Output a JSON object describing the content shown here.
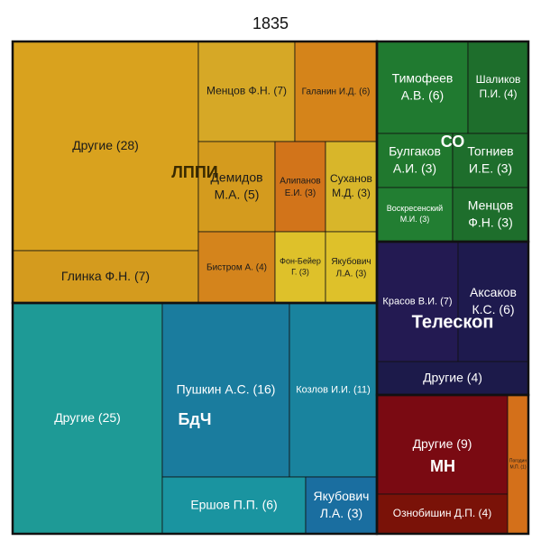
{
  "chart_data": {
    "type": "treemap",
    "title": "1835",
    "groups": [
      {
        "name": "ЛППИ",
        "label_color": "#3a2a00",
        "children": [
          {
            "name": "Другие",
            "value": 28,
            "label": "Другие (28)",
            "color": "#D9A21E"
          },
          {
            "name": "Глинка Ф.Н.",
            "value": 7,
            "label": "Глинка Ф.Н. (7)",
            "color": "#D49B1E"
          },
          {
            "name": "Менцов Ф.Н.",
            "value": 7,
            "label": "Менцов Ф.Н. (7)",
            "color": "#D6A826"
          },
          {
            "name": "Галанин И.Д.",
            "value": 6,
            "label": "Галанин И.Д. (6)",
            "color": "#D5841A"
          },
          {
            "name": "Демидов М.А.",
            "value": 5,
            "label": "Демидов М.А. (5)",
            "color": "#D49B1E"
          },
          {
            "name": "Бистром А.",
            "value": 4,
            "label": "Бистром А. (4)",
            "color": "#D4841C"
          },
          {
            "name": "Алипанов Е.И.",
            "value": 3,
            "label": "Алипанов Е.И. (3)",
            "color": "#D2741A"
          },
          {
            "name": "Суханов М.Д.",
            "value": 3,
            "label": "Суханов М.Д. (3)",
            "color": "#D8B62A"
          },
          {
            "name": "Фон-Бейер Г.",
            "value": 3,
            "label": "Фон-Бейер Г. (3)",
            "color": "#DEC12A"
          },
          {
            "name": "Якубович Л.А.",
            "value": 3,
            "label": "Якубович Л.А. (3)",
            "color": "#DEC12A"
          }
        ]
      },
      {
        "name": "СО",
        "label_color": "#ffffff",
        "children": [
          {
            "name": "Тимофеев А.В.",
            "value": 6,
            "label": "Тимофеев А.В. (6)",
            "color": "#207A30"
          },
          {
            "name": "Шаликов П.И.",
            "value": 4,
            "label": "Шаликов П.И. (4)",
            "color": "#1E6E2C"
          },
          {
            "name": "Булгаков А.И.",
            "value": 3,
            "label": "Булгаков А.И. (3)",
            "color": "#20782E"
          },
          {
            "name": "Тогниев И.Е.",
            "value": 3,
            "label": "Тогниев И.Е. (3)",
            "color": "#1E6E2C"
          },
          {
            "name": "Воскресенский М.И.",
            "value": 3,
            "label": "Воскресенский М.И. (3)",
            "color": "#227E32"
          },
          {
            "name": "Менцов Ф.Н.",
            "value": 3,
            "label": "Менцов Ф.Н. (3)",
            "color": "#1E6E2C"
          }
        ]
      },
      {
        "name": "Телескоп",
        "label_color": "#ffffff",
        "children": [
          {
            "name": "Красов В.И.",
            "value": 7,
            "label": "Красов В.И. (7)",
            "color": "#231A52"
          },
          {
            "name": "Аксаков К.С.",
            "value": 6,
            "label": "Аксаков К.С. (6)",
            "color": "#1E1A4E"
          },
          {
            "name": "Другие",
            "value": 4,
            "label": "Другие (4)",
            "color": "#1C1A4A"
          }
        ]
      },
      {
        "name": "БдЧ",
        "label_color": "#ffffff",
        "children": [
          {
            "name": "Другие",
            "value": 25,
            "label": "Другие (25)",
            "color": "#1E9A96"
          },
          {
            "name": "Пушкин А.С.",
            "value": 16,
            "label": "Пушкин А.С. (16)",
            "color": "#1A7C9E"
          },
          {
            "name": "Козлов И.И.",
            "value": 11,
            "label": "Козлов И.И. (11)",
            "color": "#19839E"
          },
          {
            "name": "Ершов П.П.",
            "value": 6,
            "label": "Ершов П.П. (6)",
            "color": "#1A94A0"
          },
          {
            "name": "Якубович Л.А.",
            "value": 3,
            "label": "Якубович Л.А. (3)",
            "color": "#1A6EA0"
          }
        ]
      },
      {
        "name": "МН",
        "label_color": "#ffffff",
        "children": [
          {
            "name": "Другие",
            "value": 9,
            "label": "Другие (9)",
            "color": "#7A0A12"
          },
          {
            "name": "Ознобишин Д.П.",
            "value": 4,
            "label": "Ознобишин Д.П. (4)",
            "color": "#7A1208"
          },
          {
            "name": "Погодин",
            "value": 1,
            "label": "Погодин М.П. (1)",
            "color": "#D4701A"
          }
        ]
      }
    ]
  }
}
